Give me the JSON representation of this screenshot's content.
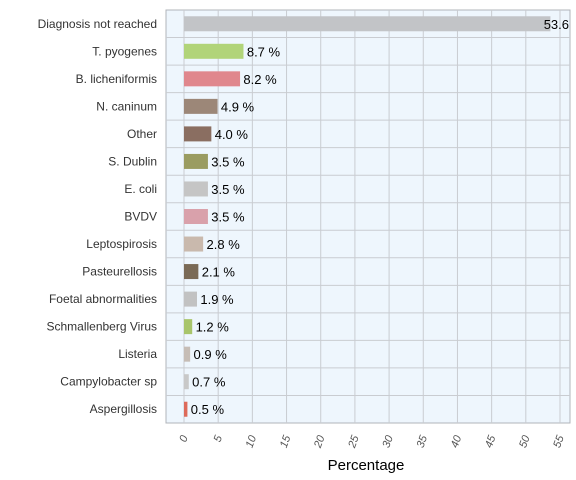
{
  "colors": {
    "plot_background": "#eef6fd",
    "grid": "#c9ccd1",
    "frame": "#b0b4ba"
  },
  "chart_data": {
    "type": "bar",
    "orientation": "horizontal",
    "title": "",
    "xlabel": "Percentage",
    "ylabel": "",
    "xlim": [
      0,
      55
    ],
    "x_ticks": [
      "0",
      "5",
      "10",
      "15",
      "20",
      "25",
      "30",
      "35",
      "40",
      "45",
      "50",
      "55"
    ],
    "grid": true,
    "categories": [
      "Diagnosis not reached",
      "T. pyogenes",
      "B. licheniformis",
      "N. caninum",
      "Other",
      "S. Dublin",
      "E. coli",
      "BVDV",
      "Leptospirosis",
      "Pasteurellosis",
      "Foetal abnormalities",
      "Schmallenberg Virus",
      "Listeria",
      "Campylobacter sp",
      "Aspergillosis"
    ],
    "values": [
      53.6,
      8.7,
      8.2,
      4.9,
      4.0,
      3.5,
      3.5,
      3.5,
      2.8,
      2.1,
      1.9,
      1.2,
      0.9,
      0.7,
      0.5
    ],
    "value_labels": [
      "53.6",
      "8.7 %",
      "8.2 %",
      "4.9 %",
      "4.0 %",
      "3.5 %",
      "3.5 %",
      "3.5 %",
      "2.8 %",
      "2.1 %",
      "1.9 %",
      "1.2 %",
      "0.9 %",
      "0.7 %",
      "0.5 %"
    ],
    "bar_colors": [
      "#c2c4c7",
      "#b1d479",
      "#e0878d",
      "#9c8778",
      "#8a6e61",
      "#9a9c61",
      "#c5c5c5",
      "#d9a1ab",
      "#c9b9ad",
      "#7a6a56",
      "#c2c2c2",
      "#a8c56b",
      "#c6bdb6",
      "#c8c8c8",
      "#dd6a5a"
    ]
  }
}
